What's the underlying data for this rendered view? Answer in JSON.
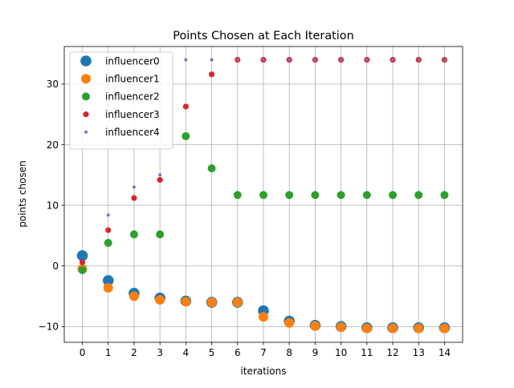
{
  "chart_data": {
    "type": "scatter",
    "title": "Points Chosen at Each Iteration",
    "xlabel": "iterations",
    "ylabel": "points chosen",
    "x": [
      0,
      1,
      2,
      3,
      4,
      5,
      6,
      7,
      8,
      9,
      10,
      11,
      12,
      13,
      14
    ],
    "x_ticks": [
      "0",
      "1",
      "2",
      "3",
      "4",
      "5",
      "6",
      "7",
      "8",
      "9",
      "10",
      "11",
      "12",
      "13",
      "14"
    ],
    "y_ticks": [
      {
        "value": -10,
        "label": "−10"
      },
      {
        "value": 0,
        "label": "0"
      },
      {
        "value": 10,
        "label": "10"
      },
      {
        "value": 20,
        "label": "20"
      },
      {
        "value": 30,
        "label": "30"
      }
    ],
    "xlim": [
      -0.7,
      14.7
    ],
    "ylim": [
      -12.6,
      36.2
    ],
    "grid": true,
    "legend_position": "top-left",
    "series": [
      {
        "name": "influencer0",
        "color": "#1f77b4",
        "marker_size": "large",
        "values": [
          1.7,
          -2.4,
          -4.5,
          -5.3,
          -5.8,
          -6.0,
          -6.0,
          -7.4,
          -9.1,
          -9.8,
          -10.0,
          -10.2,
          -10.2,
          -10.2,
          -10.2
        ]
      },
      {
        "name": "influencer1",
        "color": "#ff7f0e",
        "marker_size": "medium-large",
        "values": [
          -0.5,
          -3.6,
          -5.0,
          -5.6,
          -5.9,
          -6.0,
          -6.0,
          -8.4,
          -9.4,
          -9.9,
          -10.1,
          -10.3,
          -10.3,
          -10.3,
          -10.3
        ]
      },
      {
        "name": "influencer2",
        "color": "#2ca02c",
        "marker_size": "medium",
        "values": [
          -0.7,
          3.8,
          5.2,
          5.2,
          21.4,
          16.1,
          11.7,
          11.7,
          11.7,
          11.7,
          11.7,
          11.7,
          11.7,
          11.7,
          11.7
        ]
      },
      {
        "name": "influencer3",
        "color": "#d62728",
        "marker_size": "small",
        "values": [
          0.6,
          5.9,
          11.2,
          14.2,
          26.3,
          31.6,
          34.0,
          34.0,
          34.0,
          34.0,
          34.0,
          34.0,
          34.0,
          34.0,
          34.0
        ]
      },
      {
        "name": "influencer4",
        "color": "#9467bd",
        "marker_size": "tiny",
        "values": [
          null,
          8.4,
          13.0,
          15.0,
          34.0,
          34.0,
          34.0,
          34.0,
          34.0,
          34.0,
          34.0,
          34.0,
          34.0,
          34.0,
          34.0
        ]
      }
    ]
  }
}
